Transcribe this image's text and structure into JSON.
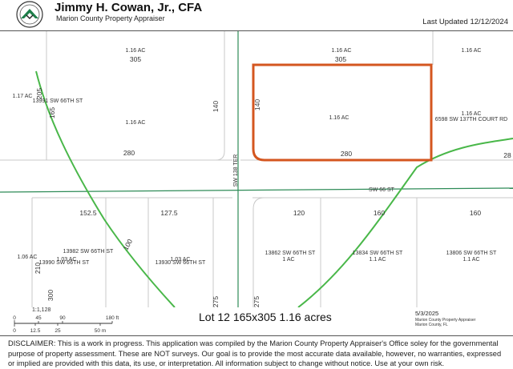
{
  "header": {
    "title": "Jimmy H. Cowan, Jr., CFA",
    "subtitle": "Marion County Property Appraiser",
    "last_updated": "Last Updated 12/12/2024"
  },
  "colors": {
    "highlight_parcel": "#d4561f",
    "road_line": "#2e8b57",
    "green_route": "#49b749",
    "parcel_line": "#c9c9c9"
  },
  "map": {
    "streets": [
      "SW 138 TER",
      "SW 66 ST"
    ],
    "acreages": [
      "1.16 AC",
      "1.16 AC",
      "1.16 AC",
      "1.17 AC",
      "1.16 AC",
      "1.16 AC",
      "1.16 AC",
      "1.03 AC",
      "1.03 AC",
      "1 AC",
      "1.1 AC",
      "1.1 AC",
      "1.06 AC"
    ],
    "addresses": [
      "13991 SW 66TH ST",
      "6598 SW 137TH COURT RD",
      "13982 SW 66TH ST",
      "13990 SW 66TH ST",
      "13930 SW 66TH ST",
      "13862 SW 66TH ST",
      "13834 SW 66TH ST",
      "13806 SW 66TH ST"
    ],
    "dimensions": [
      "305",
      "305",
      "205",
      "165",
      "140",
      "140",
      "280",
      "280",
      "152.5",
      "127.5",
      "100",
      "120",
      "160",
      "160",
      "210",
      "300",
      "275",
      "275",
      "28"
    ]
  },
  "scale": {
    "ratio": "1:1,128",
    "feet_ticks": [
      "0",
      "45",
      "90",
      "180 ft"
    ],
    "meter_ticks": [
      "0",
      "12.5",
      "25",
      "50 m"
    ]
  },
  "footer": {
    "lot_caption": "Lot 12  165x305 1.16 acres",
    "date": "5/3/2025",
    "credit_line1": "Marion County Property Appraiser",
    "credit_line2": "Marion County, FL",
    "disclaimer": "DISCLAIMER: This is a work in progress. This application was compiled by the Marion County Property Appraiser's Office soley for the governmental purpose of property assessment. These are NOT surveys. Our goal is to provide the most accurate data available, however, no warranties, expressed or implied are provided with this data, its use, or interpretation. All information subject to change without notice. Use at your own risk."
  }
}
